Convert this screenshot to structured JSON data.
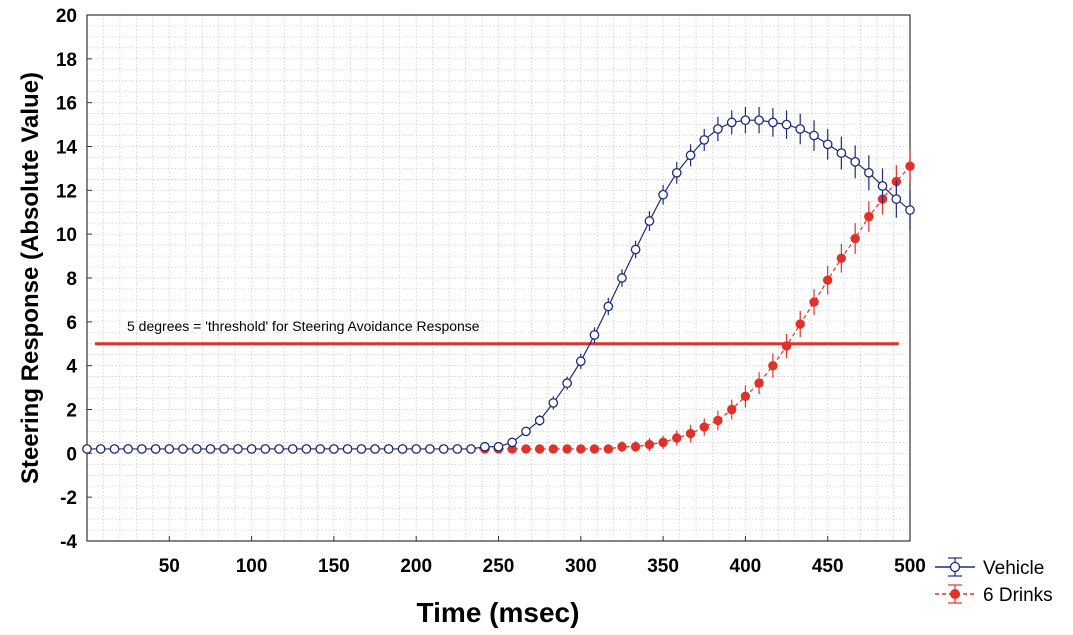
{
  "chart_data": {
    "type": "line",
    "title": "",
    "xlabel": "Time (msec)",
    "ylabel": "Steering Response (Absolute Value)",
    "xlim": [
      0,
      500
    ],
    "ylim": [
      -4,
      20
    ],
    "x_ticks": [
      50,
      100,
      150,
      200,
      250,
      300,
      350,
      400,
      450,
      500
    ],
    "y_ticks": [
      -4,
      -2,
      0,
      2,
      4,
      6,
      8,
      10,
      12,
      14,
      16,
      18,
      20
    ],
    "grid": true,
    "legend_position": "bottom-right, outside plot",
    "threshold": {
      "y": 5,
      "x_range": [
        0,
        495
      ],
      "label": "5 degrees = 'threshold' for Steering Avoidance Response",
      "color": "#e0312a"
    },
    "x": [
      0,
      8.3,
      16.7,
      25,
      33.3,
      41.7,
      50,
      58.3,
      66.7,
      75,
      83.3,
      91.7,
      100,
      108.3,
      116.7,
      125,
      133.3,
      141.7,
      150,
      158.3,
      166.7,
      175,
      183.3,
      191.7,
      200,
      208.3,
      216.7,
      225,
      233.3,
      241.7,
      250,
      258.3,
      266.7,
      275,
      283.3,
      291.7,
      300,
      308.3,
      316.7,
      325,
      333.3,
      341.7,
      350,
      358.3,
      366.7,
      375,
      383.3,
      391.7,
      400,
      408.3,
      416.7,
      425,
      433.3,
      441.7,
      450,
      458.3,
      466.7,
      475,
      483.3,
      491.7,
      500
    ],
    "series": [
      {
        "name": "Vehicle",
        "color": "#1c2a7a",
        "marker": "open-diamond",
        "line": "solid",
        "values": [
          0.2,
          0.2,
          0.2,
          0.2,
          0.2,
          0.2,
          0.2,
          0.2,
          0.2,
          0.2,
          0.2,
          0.2,
          0.2,
          0.2,
          0.2,
          0.2,
          0.2,
          0.2,
          0.2,
          0.2,
          0.2,
          0.2,
          0.2,
          0.2,
          0.2,
          0.2,
          0.2,
          0.2,
          0.2,
          0.3,
          0.3,
          0.5,
          1.0,
          1.5,
          2.3,
          3.2,
          4.2,
          5.4,
          6.7,
          8.0,
          9.3,
          10.6,
          11.8,
          12.8,
          13.6,
          14.3,
          14.8,
          15.1,
          15.2,
          15.2,
          15.1,
          15.0,
          14.8,
          14.5,
          14.1,
          13.7,
          13.3,
          12.8,
          12.2,
          11.6,
          11.1
        ],
        "error": [
          0.15,
          0.15,
          0.15,
          0.15,
          0.15,
          0.15,
          0.15,
          0.15,
          0.15,
          0.15,
          0.15,
          0.15,
          0.15,
          0.15,
          0.15,
          0.15,
          0.15,
          0.15,
          0.15,
          0.15,
          0.15,
          0.15,
          0.15,
          0.15,
          0.15,
          0.15,
          0.15,
          0.15,
          0.15,
          0.15,
          0.2,
          0.2,
          0.2,
          0.25,
          0.3,
          0.3,
          0.35,
          0.35,
          0.4,
          0.4,
          0.4,
          0.45,
          0.45,
          0.5,
          0.5,
          0.5,
          0.55,
          0.55,
          0.6,
          0.6,
          0.65,
          0.65,
          0.7,
          0.7,
          0.7,
          0.75,
          0.75,
          0.8,
          0.8,
          0.85,
          0.9
        ]
      },
      {
        "name": "6 Drinks",
        "color": "#e0312a",
        "marker": "filled-circle",
        "line": "dashed",
        "values": [
          0.2,
          0.2,
          0.2,
          0.2,
          0.2,
          0.2,
          0.2,
          0.2,
          0.2,
          0.2,
          0.2,
          0.2,
          0.2,
          0.2,
          0.2,
          0.2,
          0.2,
          0.2,
          0.2,
          0.2,
          0.2,
          0.2,
          0.2,
          0.2,
          0.2,
          0.2,
          0.2,
          0.2,
          0.2,
          0.2,
          0.2,
          0.2,
          0.2,
          0.2,
          0.2,
          0.2,
          0.2,
          0.2,
          0.2,
          0.3,
          0.3,
          0.4,
          0.5,
          0.7,
          0.9,
          1.2,
          1.5,
          2.0,
          2.6,
          3.2,
          4.0,
          4.9,
          5.9,
          6.9,
          7.9,
          8.9,
          9.8,
          10.8,
          11.6,
          12.4,
          13.1
        ],
        "error": [
          0.15,
          0.15,
          0.15,
          0.15,
          0.15,
          0.15,
          0.15,
          0.15,
          0.15,
          0.15,
          0.15,
          0.15,
          0.15,
          0.15,
          0.15,
          0.15,
          0.15,
          0.15,
          0.15,
          0.15,
          0.15,
          0.15,
          0.15,
          0.15,
          0.15,
          0.15,
          0.15,
          0.15,
          0.15,
          0.15,
          0.15,
          0.15,
          0.15,
          0.15,
          0.15,
          0.15,
          0.2,
          0.2,
          0.2,
          0.25,
          0.25,
          0.3,
          0.3,
          0.35,
          0.4,
          0.4,
          0.45,
          0.45,
          0.5,
          0.5,
          0.55,
          0.55,
          0.6,
          0.6,
          0.65,
          0.65,
          0.7,
          0.7,
          0.7,
          0.75,
          0.75
        ]
      }
    ]
  }
}
